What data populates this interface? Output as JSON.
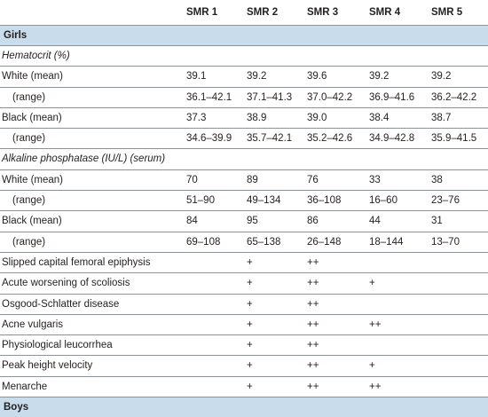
{
  "headers": [
    "",
    "SMR 1",
    "SMR 2",
    "SMR 3",
    "SMR 4",
    "SMR 5"
  ],
  "sections": {
    "girls": "Girls",
    "boys": "Boys"
  },
  "rows": [
    {
      "label": "Hematocrit (%)",
      "kind": "sub",
      "cells": [
        "",
        "",
        "",
        "",
        ""
      ]
    },
    {
      "label": "White (mean)",
      "kind": "row",
      "cells": [
        "39.1",
        "39.2",
        "39.6",
        "39.2",
        "39.2"
      ]
    },
    {
      "label": "(range)",
      "kind": "ind",
      "cells": [
        "36.1–42.1",
        "37.1–41.3",
        "37.0–42.2",
        "36.9–41.6",
        "36.2–42.2"
      ]
    },
    {
      "label": "Black (mean)",
      "kind": "row",
      "cells": [
        "37.3",
        "38.9",
        "39.0",
        "38.4",
        "38.7"
      ]
    },
    {
      "label": "(range)",
      "kind": "ind",
      "cells": [
        "34.6–39.9",
        "35.7–42.1",
        "35.2–42.6",
        "34.9–42.8",
        "35.9–41.5"
      ]
    },
    {
      "label": "Alkaline phosphatase (IU/L) (serum)",
      "kind": "sub",
      "cells": [
        "",
        "",
        "",
        "",
        ""
      ]
    },
    {
      "label": "White (mean)",
      "kind": "row",
      "cells": [
        "70",
        "89",
        "76",
        "33",
        "38"
      ]
    },
    {
      "label": "(range)",
      "kind": "ind",
      "cells": [
        "51–90",
        "49–134",
        "36–108",
        "16–60",
        "23–76"
      ]
    },
    {
      "label": "Black (mean)",
      "kind": "row",
      "cells": [
        "84",
        "95",
        "86",
        "44",
        "31"
      ]
    },
    {
      "label": "(range)",
      "kind": "ind",
      "cells": [
        "69–108",
        "65–138",
        "26–148",
        "18–144",
        "13–70"
      ]
    },
    {
      "label": "Slipped capital femoral epiphysis",
      "kind": "row",
      "cells": [
        "",
        "+",
        "++",
        "",
        ""
      ]
    },
    {
      "label": "Acute worsening of scoliosis",
      "kind": "row",
      "cells": [
        "",
        "+",
        "++",
        "+",
        ""
      ]
    },
    {
      "label": "Osgood-Schlatter disease",
      "kind": "row",
      "cells": [
        "",
        "+",
        "++",
        "",
        ""
      ]
    },
    {
      "label": "Acne vulgaris",
      "kind": "row",
      "cells": [
        "",
        "+",
        "++",
        "++",
        ""
      ]
    },
    {
      "label": "Physiological leucorrhea",
      "kind": "row",
      "cells": [
        "",
        "+",
        "++",
        "",
        ""
      ]
    },
    {
      "label": "Peak height velocity",
      "kind": "row",
      "cells": [
        "",
        "+",
        "++",
        "+",
        ""
      ]
    },
    {
      "label": "Menarche",
      "kind": "row",
      "cells": [
        "",
        "+",
        "++",
        "++",
        ""
      ]
    }
  ]
}
